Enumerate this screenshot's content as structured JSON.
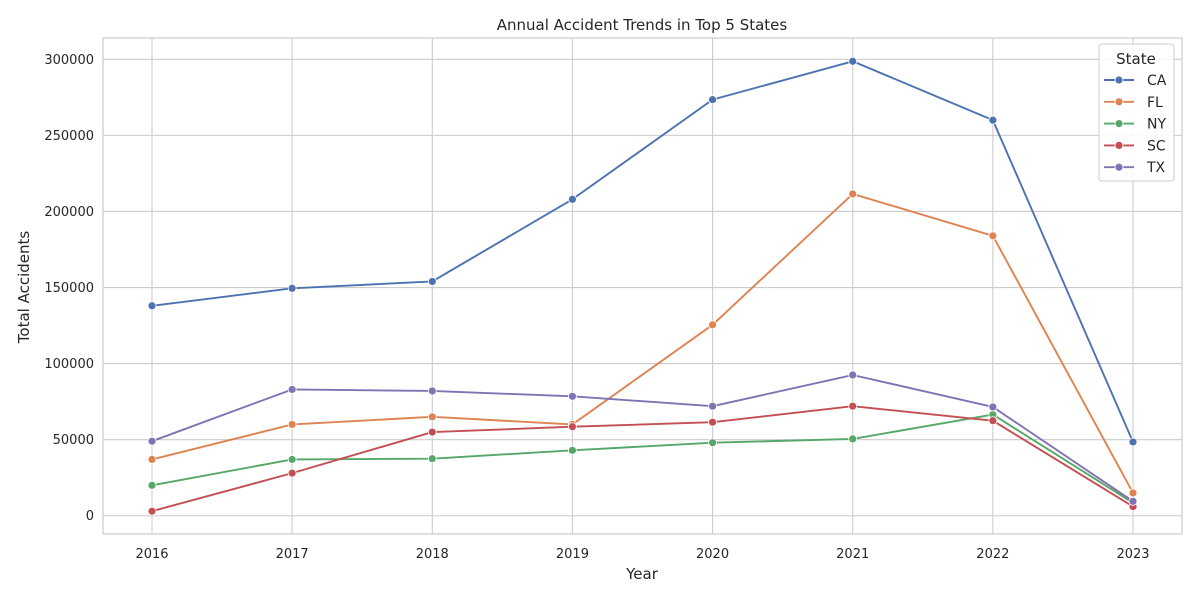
{
  "chart_data": {
    "type": "line",
    "title": "Annual Accident Trends in Top 5 States",
    "xlabel": "Year",
    "ylabel": "Total Accidents",
    "x": [
      "2016",
      "2017",
      "2018",
      "2019",
      "2020",
      "2021",
      "2022",
      "2023"
    ],
    "yticks": [
      "0",
      "50000",
      "100000",
      "150000",
      "200000",
      "250000",
      "300000"
    ],
    "ylim": [
      -12000,
      314000
    ],
    "grid": true,
    "legend": {
      "title": "State",
      "position": "top-right"
    },
    "series": [
      {
        "name": "CA",
        "color": "#4C72B0",
        "values": [
          138000,
          149500,
          154000,
          208000,
          273500,
          298700,
          260000,
          48500
        ]
      },
      {
        "name": "FL",
        "color": "#DD8452",
        "values": [
          37000,
          60000,
          65000,
          60000,
          125500,
          211500,
          184000,
          15000
        ]
      },
      {
        "name": "NY",
        "color": "#55A868",
        "values": [
          20000,
          37000,
          37500,
          43000,
          48000,
          50500,
          66500,
          8500
        ]
      },
      {
        "name": "SC",
        "color": "#C44E52",
        "values": [
          3000,
          28000,
          55000,
          58500,
          61500,
          72000,
          62500,
          6000
        ]
      },
      {
        "name": "TX",
        "color": "#8172B3",
        "values": [
          49000,
          83000,
          82000,
          78500,
          72000,
          92500,
          71500,
          9500
        ]
      }
    ]
  }
}
